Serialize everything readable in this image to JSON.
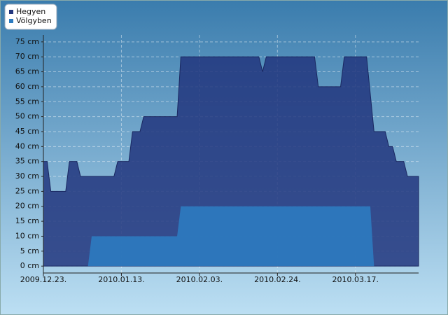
{
  "chart_data": {
    "type": "area",
    "series": [
      {
        "name": "Hegyen",
        "color": "#22367e",
        "x": [
          "2009.12.23.",
          "2009.12.24.",
          "2009.12.25.",
          "2009.12.29.",
          "2009.12.30.",
          "2010.01.01.",
          "2010.01.02.",
          "2010.01.11.",
          "2010.01.12.",
          "2010.01.15.",
          "2010.01.16.",
          "2010.01.18.",
          "2010.01.19.",
          "2010.01.28.",
          "2010.01.29.",
          "2010.02.19.",
          "2010.02.20.",
          "2010.02.21.",
          "2010.03.06.",
          "2010.03.07.",
          "2010.03.13.",
          "2010.03.14.",
          "2010.03.20.",
          "2010.03.22.",
          "2010.03.25.",
          "2010.03.26.",
          "2010.03.27.",
          "2010.03.28.",
          "2010.03.30.",
          "2010.03.31.",
          "2010.04.03."
        ],
        "values": [
          35,
          35,
          25,
          25,
          35,
          35,
          30,
          30,
          35,
          35,
          45,
          45,
          50,
          50,
          70,
          70,
          65,
          70,
          70,
          60,
          60,
          70,
          70,
          45,
          45,
          40,
          40,
          35,
          35,
          30,
          30
        ]
      },
      {
        "name": "Völgyben",
        "color": "#2c7bc0",
        "x": [
          "2009.12.23.",
          "2010.01.04.",
          "2010.01.05.",
          "2010.01.28.",
          "2010.01.29.",
          "2010.03.21.",
          "2010.03.22.",
          "2010.04.03."
        ],
        "values": [
          0,
          0,
          10,
          10,
          20,
          20,
          0,
          0
        ]
      }
    ],
    "xlim": [
      "2009.12.23.",
      "2010.04.03."
    ],
    "xticks": [
      "2009.12.23.",
      "2010.01.13.",
      "2010.02.03.",
      "2010.02.24.",
      "2010.03.17."
    ],
    "ylim": [
      -2.3,
      77.3
    ],
    "yticks": [
      {
        "value": 0,
        "label": "0 cm"
      },
      {
        "value": 5,
        "label": "5 cm"
      },
      {
        "value": 10,
        "label": "10 cm"
      },
      {
        "value": 15,
        "label": "15 cm"
      },
      {
        "value": 20,
        "label": "20 cm"
      },
      {
        "value": 25,
        "label": "25 cm"
      },
      {
        "value": 30,
        "label": "30 cm"
      },
      {
        "value": 35,
        "label": "35 cm"
      },
      {
        "value": 40,
        "label": "40 cm"
      },
      {
        "value": 45,
        "label": "45 cm"
      },
      {
        "value": 50,
        "label": "50 cm"
      },
      {
        "value": 55,
        "label": "55 cm"
      },
      {
        "value": 60,
        "label": "60 cm"
      },
      {
        "value": 65,
        "label": "65 cm"
      },
      {
        "value": 70,
        "label": "70 cm"
      },
      {
        "value": 75,
        "label": "75 cm"
      }
    ],
    "grid": true,
    "legend": "top-left"
  }
}
